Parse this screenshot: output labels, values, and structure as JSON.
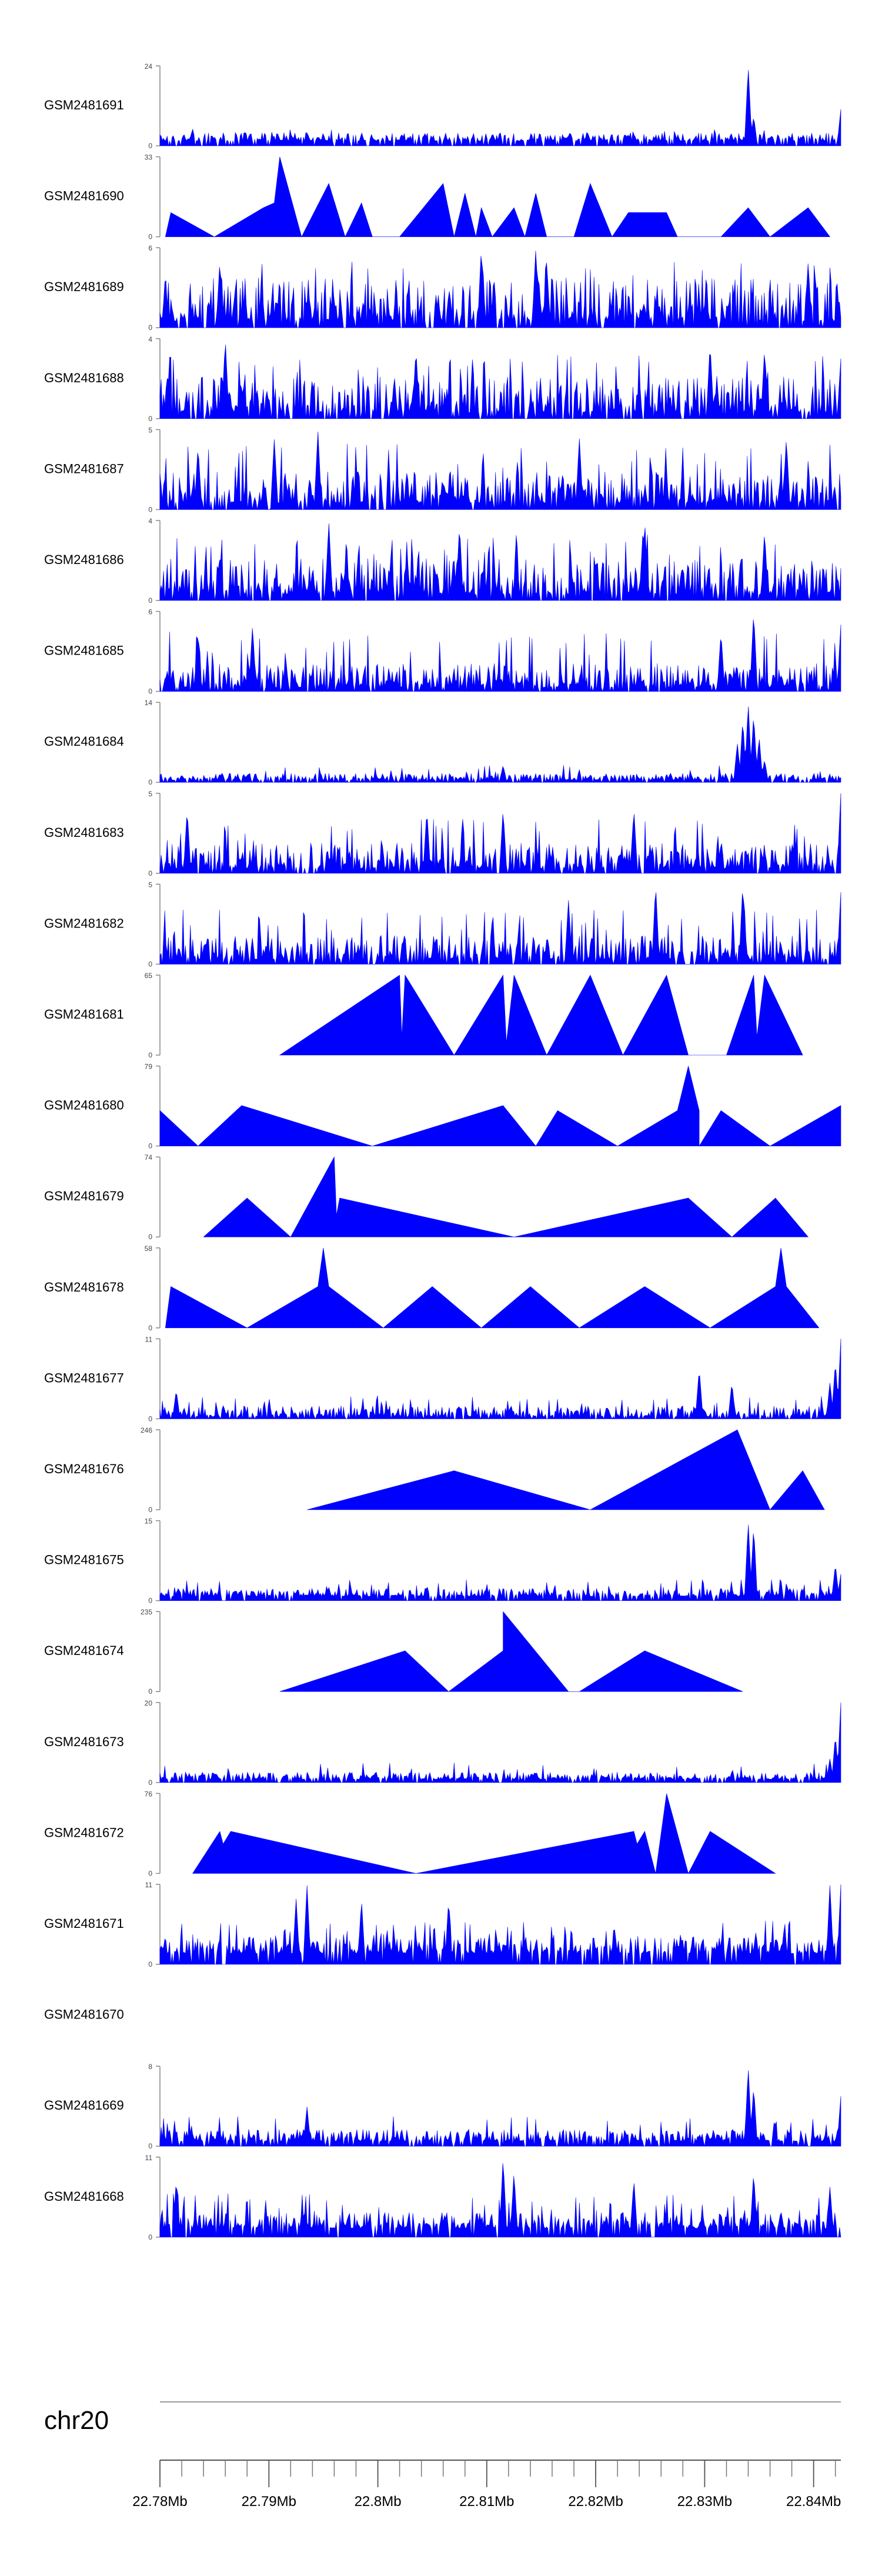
{
  "chart_data": {
    "type": "area",
    "title": "",
    "chromosome": "chr20",
    "xlim": [
      22.78,
      22.8425
    ],
    "x_unit": "Mb",
    "x_ticks": [
      22.78,
      22.79,
      22.8,
      22.81,
      22.82,
      22.83,
      22.84
    ],
    "x_tick_labels": [
      "22.78Mb",
      "22.79Mb",
      "22.8Mb",
      "22.81Mb",
      "22.82Mb",
      "22.83Mb",
      "22.84Mb"
    ],
    "grid": false,
    "legend": "none",
    "series_color": "#0000ff",
    "tracks": [
      {
        "name": "GSM2481691",
        "ymax": 24,
        "style": "dense",
        "base": 1.5,
        "noise": 2.5,
        "spike_p": 0.03,
        "spike_h": 5,
        "peaks": [
          [
            22.834,
            24
          ],
          [
            22.8345,
            9
          ],
          [
            22.8425,
            11
          ]
        ],
        "range": [
          22.78,
          22.8425
        ]
      },
      {
        "name": "GSM2481690",
        "ymax": 33,
        "style": "sparse",
        "points": [
          [
            22.7805,
            0
          ],
          [
            22.781,
            10
          ],
          [
            22.785,
            0
          ],
          [
            22.7895,
            12
          ],
          [
            22.7905,
            14
          ],
          [
            22.791,
            33
          ],
          [
            22.793,
            0
          ],
          [
            22.7955,
            22
          ],
          [
            22.797,
            0
          ],
          [
            22.7985,
            14
          ],
          [
            22.7995,
            0
          ],
          [
            22.802,
            0
          ],
          [
            22.806,
            22
          ],
          [
            22.807,
            0
          ],
          [
            22.808,
            18
          ],
          [
            22.809,
            0
          ],
          [
            22.8095,
            12
          ],
          [
            22.8105,
            0
          ],
          [
            22.8125,
            12
          ],
          [
            22.8135,
            0
          ],
          [
            22.8145,
            18
          ],
          [
            22.8155,
            0
          ],
          [
            22.818,
            0
          ],
          [
            22.8195,
            22
          ],
          [
            22.8215,
            0
          ],
          [
            22.823,
            10
          ],
          [
            22.8265,
            10
          ],
          [
            22.8275,
            0
          ],
          [
            22.8315,
            0
          ],
          [
            22.834,
            12
          ],
          [
            22.836,
            0
          ],
          [
            22.8395,
            12
          ],
          [
            22.8415,
            0
          ]
        ]
      },
      {
        "name": "GSM2481689",
        "ymax": 6,
        "style": "dense",
        "base": 0.5,
        "noise": 3.2,
        "spike_p": 0.08,
        "spike_h": 5,
        "peaks": [
          [
            22.7855,
            5
          ],
          [
            22.8095,
            6
          ],
          [
            22.8145,
            6
          ],
          [
            22.8155,
            5
          ],
          [
            22.8395,
            5
          ]
        ],
        "range": [
          22.78,
          22.8425
        ]
      },
      {
        "name": "GSM2481688",
        "ymax": 4,
        "style": "dense",
        "base": 0.3,
        "noise": 1.8,
        "spike_p": 0.07,
        "spike_h": 3.2,
        "peaks": [
          [
            22.786,
            4
          ],
          [
            22.8035,
            3.5
          ],
          [
            22.8305,
            3.8
          ],
          [
            22.8355,
            3.5
          ],
          [
            22.8425,
            3
          ]
        ],
        "range": [
          22.78,
          22.8425
        ]
      },
      {
        "name": "GSM2481687",
        "ymax": 5,
        "style": "dense",
        "base": 0.4,
        "noise": 2.0,
        "spike_p": 0.07,
        "spike_h": 4.2,
        "peaks": [
          [
            22.7835,
            4
          ],
          [
            22.7905,
            4.5
          ],
          [
            22.7945,
            5
          ],
          [
            22.8185,
            4.5
          ],
          [
            22.8375,
            4.5
          ]
        ],
        "range": [
          22.78,
          22.8425
        ]
      },
      {
        "name": "GSM2481686",
        "ymax": 4,
        "style": "dense",
        "base": 0.3,
        "noise": 1.8,
        "spike_p": 0.08,
        "spike_h": 3.3,
        "peaks": [
          [
            22.7955,
            4
          ],
          [
            22.8075,
            3.8
          ],
          [
            22.8245,
            4
          ],
          [
            22.8355,
            3.5
          ]
        ],
        "range": [
          22.78,
          22.8425
        ]
      },
      {
        "name": "GSM2481685",
        "ymax": 6,
        "style": "dense",
        "base": 0.3,
        "noise": 1.8,
        "spike_p": 0.06,
        "spike_h": 4.5,
        "peaks": [
          [
            22.7835,
            4.5
          ],
          [
            22.7885,
            5
          ],
          [
            22.8315,
            4.5
          ],
          [
            22.8345,
            6
          ],
          [
            22.8425,
            5
          ]
        ],
        "range": [
          22.78,
          22.8425
        ]
      },
      {
        "name": "GSM2481684",
        "ymax": 14,
        "style": "dense",
        "base": 0.4,
        "noise": 1.2,
        "spike_p": 0.03,
        "spike_h": 3,
        "peaks": [
          [
            22.833,
            7
          ],
          [
            22.8335,
            11
          ],
          [
            22.834,
            14
          ],
          [
            22.8345,
            12
          ],
          [
            22.835,
            8
          ],
          [
            22.8355,
            4
          ],
          [
            22.8115,
            3
          ]
        ],
        "range": [
          22.78,
          22.8425
        ]
      },
      {
        "name": "GSM2481683",
        "ymax": 5,
        "style": "dense",
        "base": 0.3,
        "noise": 1.6,
        "spike_p": 0.06,
        "spike_h": 3.4,
        "peaks": [
          [
            22.7825,
            4
          ],
          [
            22.8045,
            4
          ],
          [
            22.8115,
            4
          ],
          [
            22.8235,
            4
          ],
          [
            22.8425,
            5
          ]
        ],
        "range": [
          22.78,
          22.8425
        ]
      },
      {
        "name": "GSM2481682",
        "ymax": 5,
        "style": "dense",
        "base": 0.3,
        "noise": 1.5,
        "spike_p": 0.06,
        "spike_h": 3.4,
        "peaks": [
          [
            22.8175,
            4
          ],
          [
            22.8255,
            5
          ],
          [
            22.8335,
            5
          ],
          [
            22.8425,
            4.5
          ]
        ],
        "range": [
          22.78,
          22.8425
        ]
      },
      {
        "name": "GSM2481681",
        "ymax": 65,
        "style": "sparse",
        "points": [
          [
            22.791,
            0
          ],
          [
            22.802,
            65
          ],
          [
            22.8022,
            15
          ],
          [
            22.8025,
            65
          ],
          [
            22.807,
            0
          ],
          [
            22.8115,
            65
          ],
          [
            22.8118,
            10
          ],
          [
            22.8125,
            65
          ],
          [
            22.8155,
            0
          ],
          [
            22.8195,
            65
          ],
          [
            22.8225,
            0
          ],
          [
            22.8265,
            65
          ],
          [
            22.8285,
            0
          ],
          [
            22.832,
            0
          ],
          [
            22.8345,
            65
          ],
          [
            22.8348,
            15
          ],
          [
            22.8355,
            65
          ],
          [
            22.839,
            0
          ]
        ]
      },
      {
        "name": "GSM2481680",
        "ymax": 79,
        "style": "sparse",
        "points": [
          [
            22.78,
            0
          ],
          [
            22.78,
            35
          ],
          [
            22.7835,
            0
          ],
          [
            22.7875,
            40
          ],
          [
            22.7995,
            0
          ],
          [
            22.8115,
            40
          ],
          [
            22.8145,
            0
          ],
          [
            22.8165,
            35
          ],
          [
            22.822,
            0
          ],
          [
            22.8275,
            35
          ],
          [
            22.8285,
            79
          ],
          [
            22.8295,
            35
          ],
          [
            22.8295,
            0
          ],
          [
            22.8315,
            35
          ],
          [
            22.836,
            0
          ],
          [
            22.8425,
            40
          ],
          [
            22.8425,
            0
          ]
        ]
      },
      {
        "name": "GSM2481679",
        "ymax": 74,
        "style": "sparse",
        "points": [
          [
            22.784,
            0
          ],
          [
            22.788,
            36
          ],
          [
            22.792,
            0
          ],
          [
            22.796,
            74
          ],
          [
            22.7962,
            20
          ],
          [
            22.7965,
            36
          ],
          [
            22.8125,
            0
          ],
          [
            22.8285,
            36
          ],
          [
            22.8325,
            0
          ],
          [
            22.8365,
            36
          ],
          [
            22.8395,
            0
          ]
        ]
      },
      {
        "name": "GSM2481678",
        "ymax": 58,
        "style": "sparse",
        "points": [
          [
            22.7805,
            0
          ],
          [
            22.781,
            30
          ],
          [
            22.788,
            0
          ],
          [
            22.7945,
            30
          ],
          [
            22.795,
            58
          ],
          [
            22.7955,
            30
          ],
          [
            22.8005,
            0
          ],
          [
            22.805,
            30
          ],
          [
            22.8095,
            0
          ],
          [
            22.814,
            30
          ],
          [
            22.8185,
            0
          ],
          [
            22.8245,
            30
          ],
          [
            22.8305,
            0
          ],
          [
            22.8365,
            30
          ],
          [
            22.837,
            58
          ],
          [
            22.8375,
            30
          ],
          [
            22.8405,
            0
          ]
        ]
      },
      {
        "name": "GSM2481677",
        "ymax": 11,
        "style": "dense",
        "base": 0.3,
        "noise": 1.5,
        "spike_p": 0.05,
        "spike_h": 3.2,
        "peaks": [
          [
            22.7815,
            4
          ],
          [
            22.8295,
            7
          ],
          [
            22.8325,
            5
          ],
          [
            22.8425,
            11
          ],
          [
            22.842,
            8
          ],
          [
            22.8415,
            5
          ]
        ],
        "range": [
          22.78,
          22.8425
        ]
      },
      {
        "name": "GSM2481676",
        "ymax": 246,
        "style": "sparse",
        "points": [
          [
            22.7935,
            0
          ],
          [
            22.807,
            120
          ],
          [
            22.8195,
            0
          ],
          [
            22.833,
            246
          ],
          [
            22.836,
            0
          ],
          [
            22.839,
            120
          ],
          [
            22.841,
            0
          ]
        ]
      },
      {
        "name": "GSM2481675",
        "ymax": 15,
        "style": "dense",
        "base": 0.8,
        "noise": 1.5,
        "spike_p": 0.06,
        "spike_h": 4,
        "peaks": [
          [
            22.834,
            15
          ],
          [
            22.8345,
            14
          ],
          [
            22.842,
            7
          ],
          [
            22.8425,
            5
          ]
        ],
        "range": [
          22.78,
          22.8425
        ]
      },
      {
        "name": "GSM2481674",
        "ymax": 235,
        "style": "sparse",
        "points": [
          [
            22.791,
            0
          ],
          [
            22.8025,
            120
          ],
          [
            22.8065,
            0
          ],
          [
            22.8115,
            120
          ],
          [
            22.8115,
            235
          ],
          [
            22.8175,
            0
          ],
          [
            22.8185,
            0
          ],
          [
            22.8245,
            120
          ],
          [
            22.8335,
            0
          ]
        ]
      },
      {
        "name": "GSM2481673",
        "ymax": 20,
        "style": "dense",
        "base": 0.8,
        "noise": 1.8,
        "spike_p": 0.05,
        "spike_h": 5,
        "peaks": [
          [
            22.8425,
            20
          ],
          [
            22.842,
            12
          ],
          [
            22.8415,
            6
          ]
        ],
        "range": [
          22.78,
          22.8425
        ]
      },
      {
        "name": "GSM2481672",
        "ymax": 76,
        "style": "sparse",
        "points": [
          [
            22.783,
            0
          ],
          [
            22.7855,
            40
          ],
          [
            22.7858,
            28
          ],
          [
            22.7865,
            40
          ],
          [
            22.8035,
            0
          ],
          [
            22.8235,
            40
          ],
          [
            22.8238,
            28
          ],
          [
            22.8245,
            40
          ],
          [
            22.8255,
            0
          ],
          [
            22.8265,
            76
          ],
          [
            22.8285,
            0
          ],
          [
            22.8305,
            40
          ],
          [
            22.8365,
            0
          ]
        ]
      },
      {
        "name": "GSM2481671",
        "ymax": 11,
        "style": "dense",
        "base": 1.5,
        "noise": 2.2,
        "spike_p": 0.1,
        "spike_h": 6,
        "peaks": [
          [
            22.7935,
            11
          ],
          [
            22.7925,
            9
          ],
          [
            22.7985,
            9
          ],
          [
            22.8065,
            9
          ],
          [
            22.8425,
            11
          ],
          [
            22.8415,
            11
          ]
        ],
        "range": [
          22.78,
          22.8425
        ]
      },
      {
        "name": "GSM2481670",
        "ymax": null,
        "style": "empty"
      },
      {
        "name": "GSM2481669",
        "ymax": 8,
        "style": "dense",
        "base": 0.5,
        "noise": 1.2,
        "spike_p": 0.04,
        "spike_h": 3,
        "peaks": [
          [
            22.834,
            8
          ],
          [
            22.8345,
            6
          ],
          [
            22.7935,
            4
          ],
          [
            22.8425,
            5
          ]
        ],
        "range": [
          22.78,
          22.8425
        ]
      },
      {
        "name": "GSM2481668",
        "ymax": 11,
        "style": "dense",
        "base": 1.2,
        "noise": 2.2,
        "spike_p": 0.08,
        "spike_h": 6,
        "peaks": [
          [
            22.7815,
            8
          ],
          [
            22.8115,
            11
          ],
          [
            22.8125,
            9
          ],
          [
            22.8235,
            8
          ],
          [
            22.8345,
            9
          ],
          [
            22.8415,
            7
          ]
        ],
        "range": [
          22.78,
          22.8425
        ]
      }
    ]
  }
}
